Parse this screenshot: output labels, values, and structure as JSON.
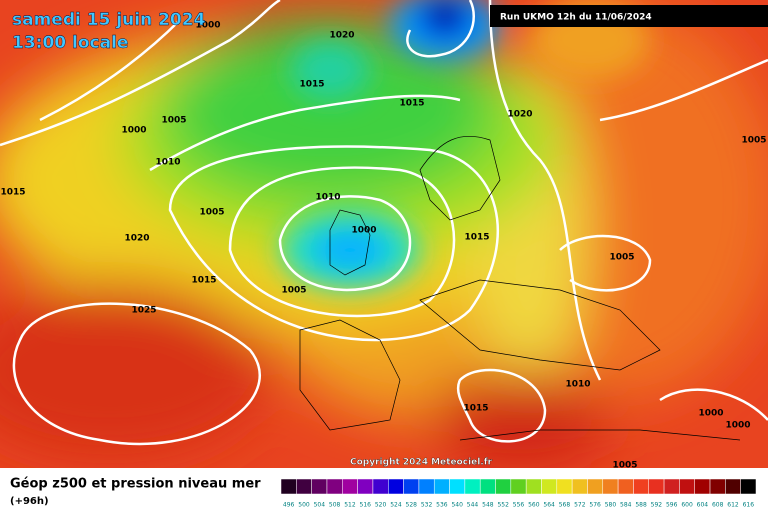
{
  "header": {
    "title": "samedi 15 juin 2024",
    "time": "13:00 locale",
    "run": "Run UKMO 12h du 11/06/2024"
  },
  "isobar_labels": [
    "1000",
    "1020",
    "1015",
    "1015",
    "1005",
    "1000",
    "1010",
    "1020",
    "1005",
    "1015",
    "1010",
    "1005",
    "1000",
    "1015",
    "1020",
    "1005",
    "1015",
    "1005",
    "1025",
    "1010",
    "1015",
    "1000",
    "1000",
    "1005"
  ],
  "copyright": "Copyright 2024 Meteociel.fr",
  "footer": {
    "title": "Géop z500 et pression niveau mer",
    "subtitle": "(+96h)"
  },
  "scale": {
    "values": [
      496,
      500,
      504,
      508,
      512,
      516,
      520,
      524,
      528,
      532,
      536,
      540,
      544,
      548,
      552,
      556,
      560,
      564,
      568,
      572,
      576,
      580,
      584,
      588,
      592,
      596,
      600,
      604,
      608,
      612,
      616
    ],
    "colors": [
      "#200020",
      "#400040",
      "#600060",
      "#800080",
      "#a000a0",
      "#8000c0",
      "#4000d0",
      "#0000e0",
      "#0040f0",
      "#0080ff",
      "#00b0ff",
      "#00e0ff",
      "#00f0c0",
      "#00e080",
      "#20d040",
      "#60d020",
      "#a0e020",
      "#d0e820",
      "#f0e020",
      "#f0c020",
      "#f0a020",
      "#f08020",
      "#f06020",
      "#f04020",
      "#e83020",
      "#d02020",
      "#c01010",
      "#a00000",
      "#800000",
      "#500000",
      "#000000"
    ]
  }
}
